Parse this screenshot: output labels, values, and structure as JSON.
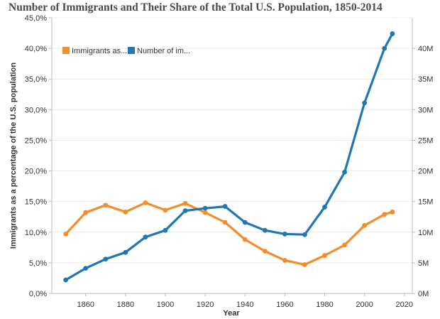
{
  "chart_data": {
    "type": "line",
    "title": "Number of Immigrants and Their Share of the Total U.S. Population, 1850-2014",
    "xlabel": "Year",
    "ylabel_left": "Immigrants as a percentage of the U.S. population",
    "ylabel_right": "",
    "xlim": [
      1843,
      2024
    ],
    "ylim_left": [
      0,
      45
    ],
    "ylim_right": [
      0,
      45
    ],
    "x_ticks": [
      1860,
      1880,
      1900,
      1920,
      1940,
      1960,
      1980,
      2000,
      2020
    ],
    "x_tick_labels": [
      "1860",
      "1880",
      "1900",
      "1920",
      "1940",
      "1960",
      "1980",
      "2000",
      "2020"
    ],
    "y_left_ticks": [
      0,
      5,
      10,
      15,
      20,
      25,
      30,
      35,
      40,
      45
    ],
    "y_left_tick_labels": [
      "0,0%",
      "5,0%",
      "10,0%",
      "15,0%",
      "20,0%",
      "25,0%",
      "30,0%",
      "35,0%",
      "40,0%",
      "45,0%"
    ],
    "y_right_ticks": [
      0,
      5,
      10,
      15,
      20,
      25,
      30,
      35,
      40
    ],
    "y_right_tick_labels": [
      "0M",
      "5M",
      "10M",
      "15M",
      "20M",
      "25M",
      "30M",
      "35M",
      "40M"
    ],
    "legend_position": "top-left",
    "x": [
      1850,
      1860,
      1870,
      1880,
      1890,
      1900,
      1910,
      1920,
      1930,
      1940,
      1950,
      1960,
      1970,
      1980,
      1990,
      2000,
      2010,
      2014
    ],
    "series": [
      {
        "name": "Immigrants as...",
        "axis": "left",
        "unit": "percent",
        "color": "#f28e2b",
        "values": [
          9.7,
          13.2,
          14.4,
          13.3,
          14.8,
          13.6,
          14.7,
          13.2,
          11.6,
          8.8,
          6.9,
          5.4,
          4.7,
          6.2,
          7.9,
          11.1,
          12.9,
          13.3
        ]
      },
      {
        "name": "Number of im...",
        "axis": "right",
        "unit": "millions",
        "color": "#1f77b4",
        "values": [
          2.2,
          4.1,
          5.6,
          6.7,
          9.2,
          10.3,
          13.5,
          13.9,
          14.2,
          11.6,
          10.3,
          9.7,
          9.6,
          14.1,
          19.8,
          31.1,
          40.0,
          42.4
        ]
      }
    ]
  }
}
